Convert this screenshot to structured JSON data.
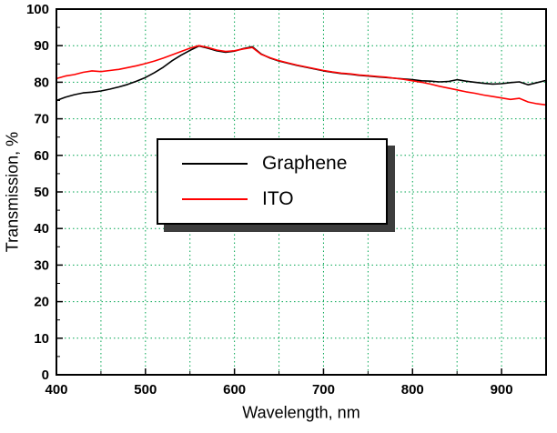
{
  "chart_data": {
    "type": "line",
    "title": "",
    "xlabel": "Wavelength, nm",
    "ylabel": "Transmission, %",
    "xlim": [
      400,
      950
    ],
    "ylim": [
      0,
      100
    ],
    "xticks": [
      400,
      500,
      600,
      700,
      800,
      900
    ],
    "yticks": [
      0,
      10,
      20,
      30,
      40,
      50,
      60,
      70,
      80,
      90,
      100
    ],
    "x_minor_step": 50,
    "y_minor_step": 5,
    "grid": {
      "show": true,
      "color": "#00A550",
      "x_step": 50
    },
    "legend_position": "inside-center-left",
    "axis_color": "#000000",
    "x": [
      400,
      410,
      420,
      430,
      440,
      450,
      460,
      470,
      480,
      490,
      500,
      510,
      520,
      530,
      540,
      550,
      560,
      570,
      580,
      590,
      600,
      610,
      620,
      630,
      640,
      650,
      660,
      670,
      680,
      690,
      700,
      710,
      720,
      730,
      740,
      750,
      760,
      770,
      780,
      790,
      800,
      810,
      820,
      830,
      840,
      850,
      860,
      870,
      880,
      890,
      900,
      910,
      920,
      930,
      940,
      950
    ],
    "series": [
      {
        "name": "Graphene",
        "color": "#000000",
        "values": [
          75.0,
          75.9,
          76.6,
          77.1,
          77.3,
          77.6,
          78.1,
          78.7,
          79.4,
          80.3,
          81.3,
          82.6,
          84.1,
          85.9,
          87.4,
          88.7,
          89.9,
          89.3,
          88.6,
          88.2,
          88.5,
          89.2,
          89.7,
          87.7,
          86.6,
          85.8,
          85.2,
          84.6,
          84.1,
          83.6,
          83.1,
          82.7,
          82.4,
          82.2,
          81.9,
          81.7,
          81.5,
          81.3,
          81.1,
          80.9,
          80.7,
          80.4,
          80.3,
          80.1,
          80.2,
          80.7,
          80.3,
          80.0,
          79.7,
          79.5,
          79.6,
          79.9,
          80.1,
          79.3,
          79.9,
          80.5
        ]
      },
      {
        "name": "ITO",
        "color": "#FF0000",
        "values": [
          81.0,
          81.7,
          82.1,
          82.7,
          83.1,
          82.9,
          83.2,
          83.5,
          84.0,
          84.5,
          85.1,
          85.8,
          86.6,
          87.5,
          88.4,
          89.3,
          90.0,
          89.5,
          88.8,
          88.4,
          88.6,
          89.1,
          89.5,
          87.6,
          86.7,
          85.9,
          85.3,
          84.7,
          84.2,
          83.7,
          83.2,
          82.8,
          82.5,
          82.3,
          82.0,
          81.8,
          81.6,
          81.4,
          81.1,
          80.8,
          80.4,
          80.0,
          79.5,
          78.9,
          78.4,
          77.9,
          77.4,
          77.0,
          76.5,
          76.1,
          75.7,
          75.3,
          75.6,
          74.6,
          74.1,
          73.8
        ]
      }
    ]
  }
}
